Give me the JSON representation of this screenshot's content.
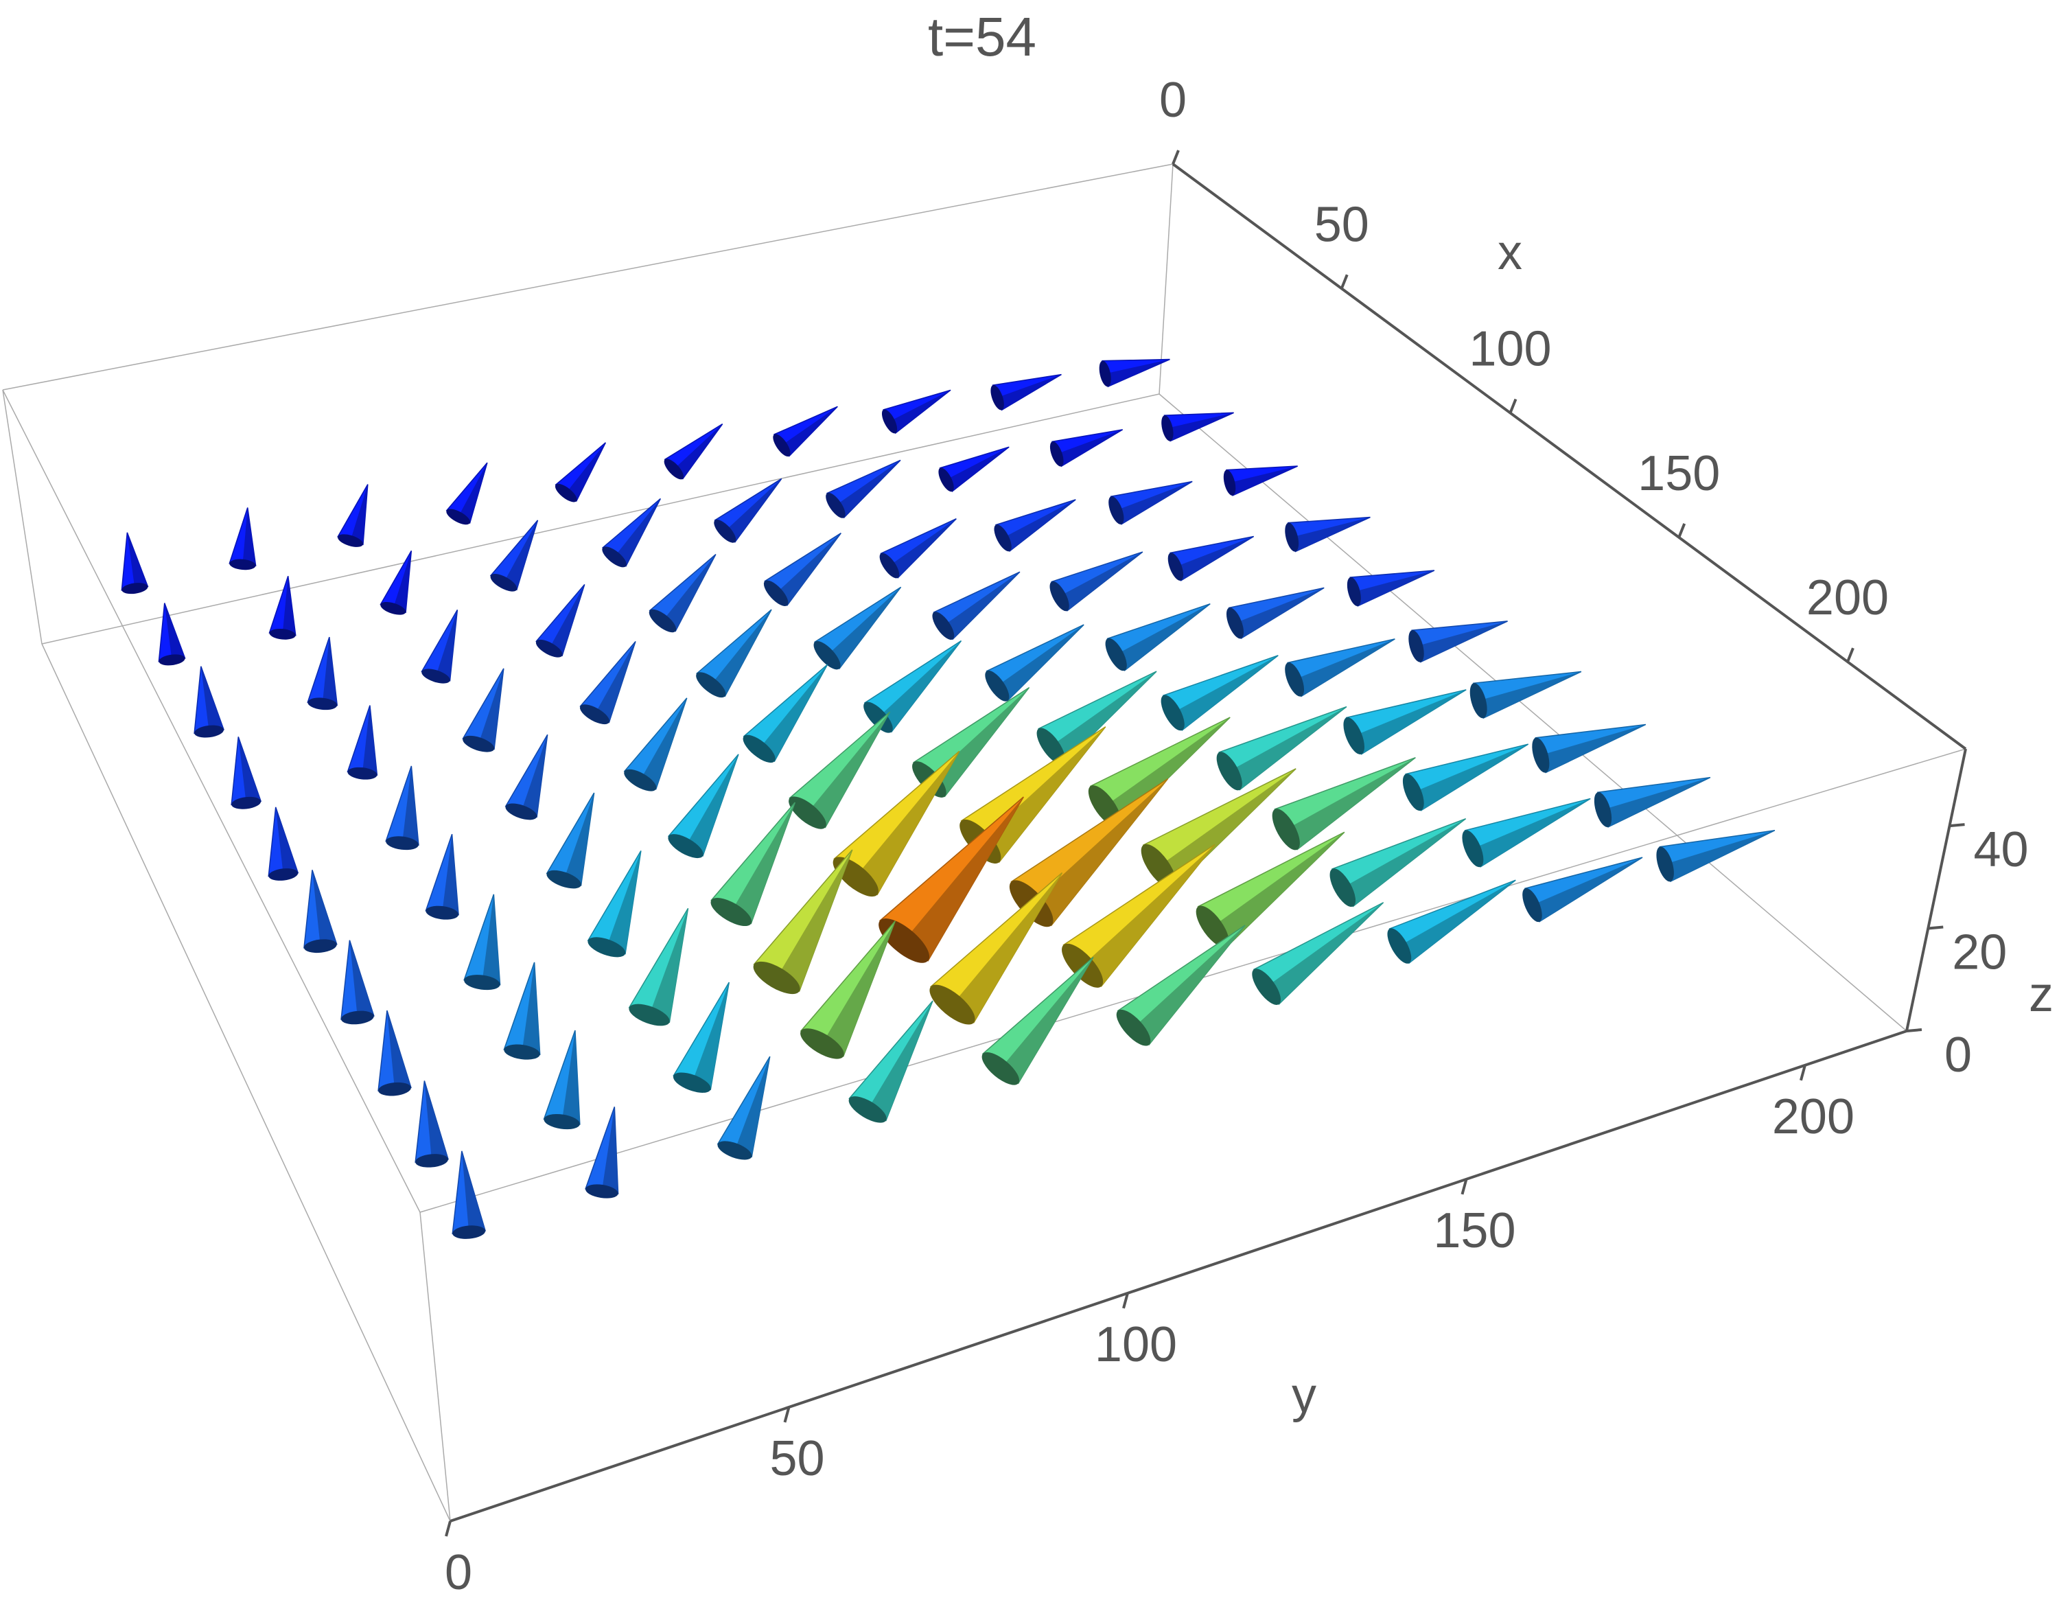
{
  "chart_data": {
    "type": "vector3d",
    "title": "t=54",
    "xlabel": "x",
    "ylabel": "y",
    "zlabel": "z",
    "xlim": [
      0,
      235
    ],
    "ylim": [
      0,
      215
    ],
    "zlim": [
      0,
      55
    ],
    "xticks": [
      0,
      50,
      100,
      150,
      200
    ],
    "yticks": [
      0,
      50,
      100,
      150,
      200
    ],
    "zticks": [
      0,
      20,
      40
    ],
    "x": [
      15,
      35,
      55,
      75,
      95,
      115,
      135,
      155,
      175,
      195
    ],
    "y": [
      15,
      35,
      55,
      75,
      95,
      115,
      135,
      155,
      175,
      195
    ],
    "z": 20,
    "angle": [
      0,
      10,
      20,
      30,
      40,
      50,
      60,
      70,
      80,
      90
    ],
    "magnitude": [
      [
        8,
        8,
        8,
        8,
        8,
        8,
        8,
        8,
        8,
        8
      ],
      [
        8,
        8,
        8,
        9,
        9,
        9,
        9,
        8,
        8,
        8
      ],
      [
        9,
        9,
        9,
        9,
        10,
        10,
        9,
        9,
        9,
        8
      ],
      [
        9,
        9,
        10,
        10,
        11,
        11,
        10,
        10,
        9,
        9
      ],
      [
        9,
        10,
        10,
        11,
        12,
        12,
        11,
        11,
        10,
        9
      ],
      [
        10,
        10,
        11,
        12,
        14,
        14,
        13,
        12,
        11,
        10
      ],
      [
        10,
        11,
        12,
        14,
        17,
        17,
        15,
        13,
        12,
        11
      ],
      [
        10,
        11,
        13,
        16,
        19,
        18,
        16,
        14,
        12,
        11
      ],
      [
        10,
        11,
        12,
        15,
        17,
        17,
        15,
        13,
        12,
        11
      ],
      [
        10,
        10,
        11,
        13,
        14,
        14,
        13,
        12,
        11,
        11
      ]
    ],
    "colors": [
      "#0a1cff",
      "#1a6cf0",
      "#20d0e8",
      "#70e070",
      "#f0e020",
      "#f08010"
    ]
  }
}
